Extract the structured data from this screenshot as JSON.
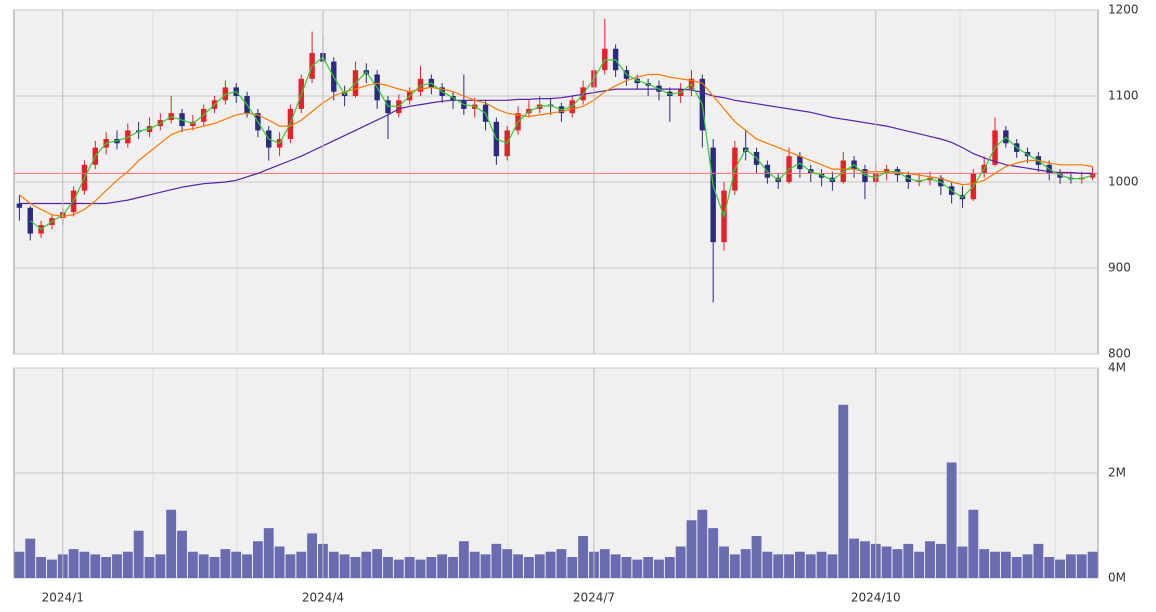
{
  "chart_data": [
    {
      "type": "candlestick",
      "up_color": "#e8202a",
      "down_color": "#2a2a80",
      "reference_line": 1010,
      "reference_color": "#ff7070",
      "ylim": [
        800,
        1200
      ],
      "yticks": [
        800,
        900,
        1000,
        1100,
        1200
      ],
      "grid": true,
      "open": [
        975,
        970,
        940,
        950,
        958,
        965,
        990,
        1020,
        1040,
        1050,
        1045,
        1060,
        1058,
        1065,
        1072,
        1080,
        1065,
        1070,
        1085,
        1095,
        1110,
        1100,
        1080,
        1060,
        1040,
        1050,
        1085,
        1120,
        1150,
        1140,
        1105,
        1100,
        1130,
        1125,
        1095,
        1080,
        1095,
        1105,
        1120,
        1110,
        1100,
        1095,
        1085,
        1090,
        1070,
        1030,
        1060,
        1080,
        1085,
        1090,
        1088,
        1080,
        1095,
        1110,
        1130,
        1155,
        1130,
        1120,
        1115,
        1112,
        1105,
        1100,
        1108,
        1120,
        1040,
        930,
        990,
        1040,
        1035,
        1020,
        1005,
        1000,
        1030,
        1015,
        1010,
        1005,
        1000,
        1025,
        1015,
        1000,
        1010,
        1015,
        1008,
        1000,
        1002,
        1005,
        995,
        985,
        980,
        1010,
        1020,
        1060,
        1045,
        1035,
        1030,
        1020,
        1010,
        1005,
        1003,
        1005
      ],
      "high": [
        985,
        972,
        955,
        962,
        970,
        995,
        1025,
        1048,
        1058,
        1060,
        1068,
        1070,
        1075,
        1080,
        1100,
        1085,
        1078,
        1090,
        1100,
        1118,
        1115,
        1105,
        1085,
        1065,
        1058,
        1090,
        1125,
        1175,
        1170,
        1145,
        1112,
        1140,
        1138,
        1130,
        1100,
        1102,
        1110,
        1135,
        1125,
        1115,
        1105,
        1125,
        1098,
        1095,
        1075,
        1065,
        1088,
        1095,
        1100,
        1098,
        1092,
        1100,
        1118,
        1140,
        1190,
        1160,
        1135,
        1125,
        1120,
        1118,
        1110,
        1115,
        1130,
        1125,
        1050,
        1000,
        1048,
        1060,
        1040,
        1025,
        1010,
        1040,
        1035,
        1020,
        1015,
        1012,
        1035,
        1030,
        1020,
        1022,
        1020,
        1018,
        1012,
        1010,
        1012,
        1008,
        1000,
        995,
        1015,
        1030,
        1075,
        1065,
        1050,
        1040,
        1035,
        1025,
        1015,
        1010,
        1012,
        1018
      ],
      "low": [
        955,
        932,
        935,
        945,
        950,
        960,
        985,
        1015,
        1032,
        1038,
        1040,
        1050,
        1052,
        1060,
        1068,
        1058,
        1060,
        1065,
        1080,
        1090,
        1092,
        1075,
        1052,
        1025,
        1030,
        1045,
        1080,
        1115,
        1120,
        1095,
        1088,
        1098,
        1115,
        1085,
        1050,
        1075,
        1090,
        1100,
        1102,
        1092,
        1085,
        1078,
        1075,
        1060,
        1020,
        1025,
        1055,
        1075,
        1080,
        1078,
        1070,
        1075,
        1090,
        1105,
        1125,
        1122,
        1112,
        1108,
        1100,
        1095,
        1070,
        1092,
        1100,
        1040,
        860,
        920,
        985,
        1025,
        1010,
        998,
        992,
        998,
        1005,
        1000,
        995,
        990,
        998,
        1005,
        980,
        995,
        1002,
        1000,
        992,
        995,
        996,
        985,
        975,
        970,
        978,
        1005,
        1018,
        1040,
        1028,
        1022,
        1012,
        1002,
        998,
        998,
        998,
        1002
      ],
      "close": [
        970,
        940,
        950,
        958,
        965,
        990,
        1020,
        1040,
        1050,
        1045,
        1060,
        1058,
        1065,
        1072,
        1080,
        1065,
        1070,
        1085,
        1095,
        1110,
        1100,
        1080,
        1060,
        1040,
        1050,
        1085,
        1120,
        1150,
        1140,
        1105,
        1100,
        1130,
        1125,
        1095,
        1080,
        1095,
        1105,
        1120,
        1110,
        1100,
        1095,
        1085,
        1090,
        1070,
        1030,
        1060,
        1080,
        1085,
        1090,
        1088,
        1080,
        1095,
        1110,
        1130,
        1155,
        1130,
        1120,
        1115,
        1112,
        1105,
        1100,
        1108,
        1120,
        1060,
        930,
        990,
        1040,
        1035,
        1020,
        1005,
        1000,
        1030,
        1015,
        1010,
        1005,
        1000,
        1025,
        1015,
        1000,
        1010,
        1015,
        1008,
        1000,
        1002,
        1005,
        995,
        985,
        980,
        1010,
        1020,
        1060,
        1045,
        1035,
        1030,
        1020,
        1010,
        1005,
        1003,
        1005,
        1010
      ],
      "series": [
        {
          "color": "#5522aa",
          "values": [
            975,
            975,
            975,
            975,
            975,
            975,
            975,
            975,
            975,
            977,
            979,
            982,
            985,
            988,
            991,
            994,
            996,
            998,
            999,
            1000,
            1002,
            1006,
            1010,
            1015,
            1020,
            1025,
            1030,
            1036,
            1042,
            1048,
            1054,
            1060,
            1066,
            1072,
            1078,
            1085,
            1088,
            1090,
            1092,
            1094,
            1095,
            1095,
            1095,
            1095,
            1095,
            1095,
            1096,
            1096,
            1097,
            1097,
            1098,
            1100,
            1102,
            1104,
            1106,
            1108,
            1108,
            1108,
            1108,
            1108,
            1108,
            1108,
            1107,
            1104,
            1100,
            1098,
            1095,
            1093,
            1091,
            1089,
            1087,
            1085,
            1083,
            1081,
            1078,
            1075,
            1073,
            1071,
            1069,
            1067,
            1065,
            1062,
            1059,
            1056,
            1053,
            1050,
            1046,
            1040,
            1033,
            1028,
            1024,
            1020,
            1018,
            1016,
            1014,
            1012,
            1011,
            1011,
            1010,
            1010
          ]
        },
        {
          "color": "#ff7700",
          "values": [
            985,
            975,
            968,
            962,
            960,
            962,
            968,
            978,
            990,
            1002,
            1012,
            1025,
            1035,
            1045,
            1055,
            1060,
            1062,
            1065,
            1068,
            1073,
            1078,
            1080,
            1078,
            1072,
            1065,
            1065,
            1072,
            1082,
            1092,
            1100,
            1105,
            1108,
            1112,
            1115,
            1112,
            1108,
            1105,
            1108,
            1110,
            1108,
            1105,
            1100,
            1095,
            1092,
            1085,
            1080,
            1078,
            1076,
            1078,
            1080,
            1082,
            1085,
            1088,
            1095,
            1105,
            1112,
            1118,
            1122,
            1125,
            1125,
            1122,
            1120,
            1118,
            1115,
            1100,
            1085,
            1070,
            1060,
            1050,
            1045,
            1040,
            1035,
            1030,
            1025,
            1020,
            1015,
            1015,
            1015,
            1012,
            1012,
            1012,
            1011,
            1010,
            1008,
            1006,
            1004,
            1000,
            997,
            998,
            1002,
            1010,
            1018,
            1022,
            1025,
            1025,
            1022,
            1020,
            1020,
            1020,
            1018
          ]
        },
        {
          "color": "#33cc33",
          "values": [
            null,
            955,
            945,
            954,
            962,
            978,
            1005,
            1030,
            1045,
            1048,
            1052,
            1059,
            1062,
            1068,
            1076,
            1072,
            1068,
            1078,
            1090,
            1102,
            1105,
            1090,
            1070,
            1050,
            1045,
            1068,
            1102,
            1135,
            1145,
            1122,
            1102,
            1115,
            1128,
            1110,
            1088,
            1088,
            1100,
            1112,
            1115,
            1105,
            1098,
            1090,
            1088,
            1080,
            1050,
            1045,
            1070,
            1082,
            1088,
            1089,
            1084,
            1088,
            1102,
            1120,
            1142,
            1142,
            1125,
            1118,
            1114,
            1108,
            1102,
            1104,
            1114,
            1090,
            995,
            960,
            1015,
            1038,
            1028,
            1012,
            1002,
            1015,
            1022,
            1012,
            1008,
            1002,
            1012,
            1020,
            1008,
            1005,
            1012,
            1012,
            1004,
            1001,
            1004,
            1000,
            990,
            982,
            995,
            1015,
            1040,
            1052,
            1040,
            1032,
            1025,
            1015,
            1008,
            1004,
            1004,
            1008
          ]
        }
      ]
    },
    {
      "type": "bar",
      "color": "#6b6bb0",
      "ylim": [
        0,
        4000000
      ],
      "yticks": [
        {
          "value": 0,
          "label": "0M"
        },
        {
          "value": 2000000,
          "label": "2M"
        },
        {
          "value": 4000000,
          "label": "4M"
        }
      ],
      "grid": true,
      "categories": [
        null,
        null,
        null,
        null,
        "2024/1",
        null,
        null,
        null,
        null,
        null,
        null,
        null,
        null,
        null,
        null,
        null,
        null,
        null,
        null,
        null,
        null,
        null,
        null,
        null,
        null,
        null,
        null,
        null,
        "2024/4",
        null,
        null,
        null,
        null,
        null,
        null,
        null,
        null,
        null,
        null,
        null,
        null,
        null,
        null,
        null,
        null,
        null,
        null,
        null,
        null,
        null,
        null,
        null,
        null,
        "2024/7",
        null,
        null,
        null,
        null,
        null,
        null,
        null,
        null,
        null,
        null,
        null,
        null,
        null,
        null,
        null,
        null,
        null,
        null,
        null,
        null,
        null,
        null,
        null,
        null,
        null,
        "2024/10",
        null,
        null,
        null,
        null,
        null,
        null,
        null,
        null,
        null,
        null,
        null,
        null,
        null,
        null,
        null,
        null,
        null,
        null,
        null,
        null
      ],
      "values": [
        500000,
        750000,
        400000,
        350000,
        450000,
        550000,
        500000,
        450000,
        400000,
        450000,
        500000,
        900000,
        400000,
        450000,
        1300000,
        900000,
        500000,
        450000,
        400000,
        550000,
        500000,
        450000,
        700000,
        950000,
        600000,
        450000,
        500000,
        850000,
        650000,
        500000,
        450000,
        400000,
        500000,
        550000,
        400000,
        350000,
        400000,
        350000,
        400000,
        450000,
        400000,
        700000,
        500000,
        450000,
        650000,
        550000,
        450000,
        400000,
        450000,
        500000,
        550000,
        400000,
        800000,
        500000,
        550000,
        450000,
        400000,
        350000,
        400000,
        350000,
        400000,
        600000,
        1100000,
        1300000,
        950000,
        600000,
        450000,
        550000,
        800000,
        500000,
        450000,
        450000,
        500000,
        450000,
        500000,
        450000,
        3300000,
        750000,
        700000,
        650000,
        600000,
        550000,
        650000,
        500000,
        700000,
        650000,
        2200000,
        600000,
        1300000,
        550000,
        500000,
        500000,
        400000,
        450000,
        650000,
        400000,
        350000,
        450000,
        450000,
        500000
      ]
    }
  ]
}
